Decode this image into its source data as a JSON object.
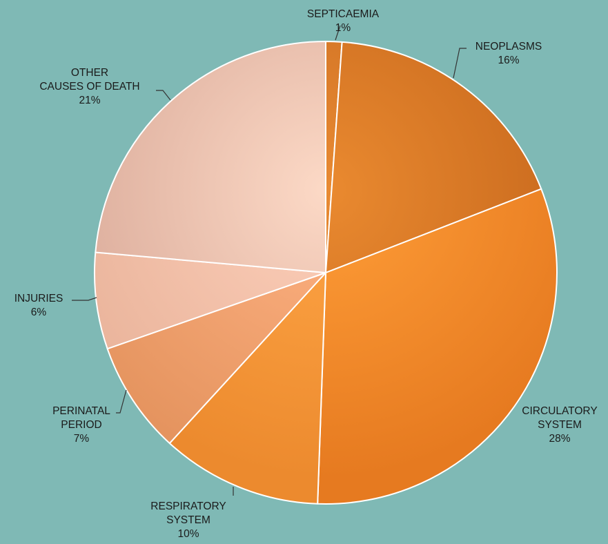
{
  "chart_data": {
    "type": "pie",
    "title": "",
    "slices": [
      {
        "name": "SEPTICAEMIA",
        "label_lines": [
          "SEPTICAEMIA"
        ],
        "value": 1,
        "pct_label": "1%",
        "color": "#c96a1e",
        "color_light": "#e88a33"
      },
      {
        "name": "NEOPLASMS",
        "label_lines": [
          "NEOPLASMS"
        ],
        "value": 16,
        "pct_label": "16%",
        "color": "#c4651b",
        "color_light": "#ea8a30"
      },
      {
        "name": "CIRCULATORY SYSTEM",
        "label_lines": [
          "CIRCULATORY",
          "SYSTEM"
        ],
        "value": 28,
        "pct_label": "28%",
        "color": "#e67a20",
        "color_light": "#ff9e38"
      },
      {
        "name": "RESPIRATORY SYSTEM",
        "label_lines": [
          "RESPIRATORY",
          "SYSTEM"
        ],
        "value": 10,
        "pct_label": "10%",
        "color": "#ec8a2e",
        "color_light": "#ffa646"
      },
      {
        "name": "PERINATAL PERIOD",
        "label_lines": [
          "PERINATAL",
          "PERIOD"
        ],
        "value": 7,
        "pct_label": "7%",
        "color": "#e5945f",
        "color_light": "#ffb384"
      },
      {
        "name": "INJURIES",
        "label_lines": [
          "INJURIES"
        ],
        "value": 6,
        "pct_label": "6%",
        "color": "#e9b39a",
        "color_light": "#fdd0bb"
      },
      {
        "name": "OTHER CAUSES OF DEATH",
        "label_lines": [
          "OTHER",
          "CAUSES OF DEATH"
        ],
        "value": 21,
        "pct_label": "21%",
        "color": "#d9a998",
        "color_light": "#fcd9c6"
      }
    ],
    "legend": "none",
    "labels": "outside with leader lines"
  }
}
